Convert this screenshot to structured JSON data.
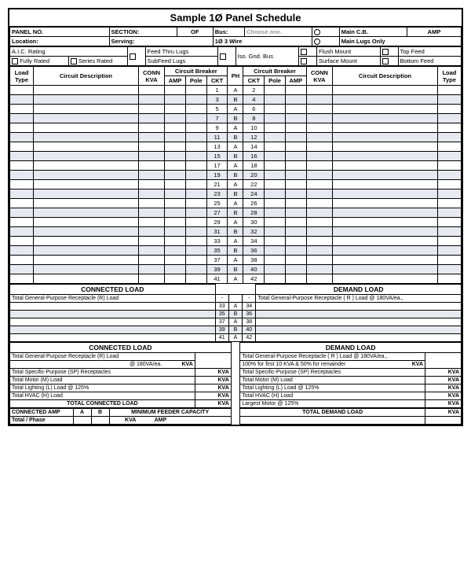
{
  "title": "Sample 1Ø Panel Schedule",
  "header": {
    "panelNo": "PANEL NO.",
    "section": "SECTION:",
    "of": "OF",
    "bus": "Bus:",
    "busVal": "Choose one.",
    "mainCB": "Main C.B.",
    "amp": "AMP",
    "location": "Location:",
    "serving": "Serving:",
    "wire": "1Ø 3 Wire",
    "mainLugs": "Main Lugs Only"
  },
  "opts": {
    "aic": "A.I.C. Rating",
    "fullyRated": "Fully Rated",
    "seriesRated": "Series Rated",
    "feedThru": "Feed Thru Lugs",
    "subFeed": "SubFeed Lugs",
    "isoGnd": "Iso. Gnd. Bus",
    "flush": "Flush Mount",
    "surface": "Surface Mount",
    "topFeed": "Top Feed",
    "bottomFeed": "Bottom Feed"
  },
  "cols": {
    "loadType": "Load Type",
    "circuitDesc": "Circuit Description",
    "connKva": "CONN KVA",
    "circuitBreaker": "Circuit Breaker",
    "amp": "AMP",
    "pole": "Pole",
    "ckt": "CKT",
    "ph": "PH"
  },
  "phases": [
    "A",
    "B",
    "A",
    "B",
    "A",
    "B",
    "A",
    "B",
    "A",
    "B",
    "A",
    "B",
    "A",
    "B",
    "A",
    "B",
    "A",
    "B",
    "A",
    "B",
    "A"
  ],
  "leftCkt": [
    1,
    3,
    5,
    7,
    9,
    11,
    13,
    15,
    17,
    19,
    21,
    23,
    25,
    27,
    29,
    31,
    33,
    35,
    37,
    39,
    41
  ],
  "rightCkt": [
    2,
    4,
    6,
    8,
    10,
    12,
    14,
    16,
    18,
    20,
    22,
    24,
    26,
    28,
    30,
    32,
    34,
    36,
    38,
    40,
    42
  ],
  "secCkt2L": [
    33,
    35,
    37,
    39,
    41
  ],
  "secCkt2R": [
    34,
    36,
    38,
    40,
    42
  ],
  "secPh2": [
    "A",
    "B",
    "A",
    "B",
    "A"
  ],
  "connLoad": "CONNECTED LOAD",
  "demLoad": "DEMAND LOAD",
  "totalGP_R": "Total General-Purpose Receptacle (R) Load",
  "totalGP_R2": "Total General-Purpose Receptacle ( R ) Load @ 180VA/ea.,",
  "summary": {
    "gp180": "@ 180VA/ea.",
    "kva": "KVA",
    "gp": "Total General-Purpose Receptacle (R) Load",
    "gp2": "Total General-Purpose Receptacle ( R ) Load @ 180VA/ea.,",
    "first10": "100% for first 10 KVA & 50% for remainder",
    "sp": "Total Specific-Purpose (SP) Receptacles",
    "motor": "Total Motor (M) Load",
    "lighting": "Total Lighting (L) Load @ 125%",
    "hvac": "Total HVAC (H) Load",
    "largestMotor": "Largest Motor @ 125%",
    "totalConn": "TOTAL CONNECTED LOAD",
    "totalDem": "TOTAL DEMAND LOAD",
    "connAmp": "CONNECTED AMP",
    "a": "A",
    "b": "B",
    "minFeeder": "MINIMUM FEEDER CAPACITY",
    "totalPhase": "Total / Phase",
    "amp": "AMP"
  }
}
